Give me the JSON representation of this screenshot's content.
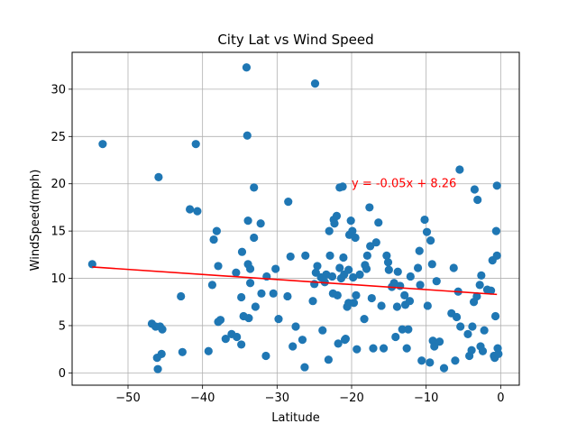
{
  "chart_data": {
    "type": "scatter",
    "title": "City Lat vs Wind Speed",
    "xlabel": "Latitude",
    "ylabel": "WindSpeed(mph)",
    "xlim": [
      -57.5,
      2.5
    ],
    "ylim": [
      -1.3,
      33.9
    ],
    "xticks": [
      -50,
      -40,
      -30,
      -20,
      -10,
      0
    ],
    "xtick_labels": [
      "−50",
      "−40",
      "−30",
      "−20",
      "−10",
      "0"
    ],
    "yticks": [
      0,
      5,
      10,
      15,
      20,
      25,
      30
    ],
    "ytick_labels": [
      "0",
      "5",
      "10",
      "15",
      "20",
      "25",
      "30"
    ],
    "grid": true,
    "point_color": "#1f77b4",
    "regression": {
      "x": [
        -54.8,
        -0.5
      ],
      "y": [
        11.2,
        8.3
      ],
      "color": "#ff0000",
      "equation": "y = -0.05x + 8.26",
      "equation_x": -20,
      "equation_y": 20
    },
    "points": [
      [
        -54.8,
        11.5
      ],
      [
        -53.4,
        24.2
      ],
      [
        -46.8,
        5.2
      ],
      [
        -46.3,
        4.9
      ],
      [
        -46.1,
        1.6
      ],
      [
        -46.0,
        0.4
      ],
      [
        -45.9,
        20.7
      ],
      [
        -45.7,
        4.9
      ],
      [
        -45.5,
        2.0
      ],
      [
        -45.4,
        4.6
      ],
      [
        -42.9,
        8.1
      ],
      [
        -42.7,
        2.2
      ],
      [
        -41.7,
        17.3
      ],
      [
        -40.9,
        24.2
      ],
      [
        -40.7,
        17.1
      ],
      [
        -39.2,
        2.3
      ],
      [
        -38.7,
        9.3
      ],
      [
        -38.5,
        14.1
      ],
      [
        -38.1,
        15.0
      ],
      [
        -37.9,
        11.3
      ],
      [
        -37.9,
        5.4
      ],
      [
        -37.6,
        5.6
      ],
      [
        -36.9,
        3.6
      ],
      [
        -36.1,
        4.1
      ],
      [
        -35.5,
        10.6
      ],
      [
        -35.4,
        3.8
      ],
      [
        -34.8,
        3.0
      ],
      [
        -34.8,
        8.0
      ],
      [
        -34.7,
        12.8
      ],
      [
        -34.5,
        6.0
      ],
      [
        -34.1,
        32.3
      ],
      [
        -34.0,
        25.1
      ],
      [
        -33.9,
        11.5
      ],
      [
        -33.9,
        16.1
      ],
      [
        -33.8,
        5.8
      ],
      [
        -33.6,
        11.0
      ],
      [
        -33.6,
        9.5
      ],
      [
        -33.1,
        14.3
      ],
      [
        -33.1,
        19.6
      ],
      [
        -32.9,
        7.0
      ],
      [
        -32.2,
        15.8
      ],
      [
        -32.1,
        8.4
      ],
      [
        -31.5,
        1.8
      ],
      [
        -31.4,
        10.2
      ],
      [
        -30.5,
        8.4
      ],
      [
        -30.2,
        11.0
      ],
      [
        -29.8,
        5.7
      ],
      [
        -28.6,
        8.1
      ],
      [
        -28.5,
        18.1
      ],
      [
        -28.2,
        12.3
      ],
      [
        -27.9,
        2.8
      ],
      [
        -27.5,
        4.9
      ],
      [
        -26.6,
        3.5
      ],
      [
        -26.3,
        0.6
      ],
      [
        -26.2,
        12.4
      ],
      [
        -25.2,
        7.6
      ],
      [
        -25.0,
        9.4
      ],
      [
        -24.9,
        30.6
      ],
      [
        -24.8,
        10.6
      ],
      [
        -24.6,
        11.3
      ],
      [
        -24.1,
        10.1
      ],
      [
        -23.9,
        4.5
      ],
      [
        -23.6,
        9.6
      ],
      [
        -23.4,
        10.4
      ],
      [
        -23.1,
        1.4
      ],
      [
        -23.0,
        15.0
      ],
      [
        -22.9,
        12.4
      ],
      [
        -22.6,
        10.2
      ],
      [
        -22.5,
        8.4
      ],
      [
        -22.4,
        16.2
      ],
      [
        -22.3,
        15.8
      ],
      [
        -22.0,
        16.6
      ],
      [
        -21.9,
        8.2
      ],
      [
        -21.8,
        3.1
      ],
      [
        -21.6,
        11.1
      ],
      [
        -21.6,
        19.6
      ],
      [
        -21.4,
        10.0
      ],
      [
        -21.2,
        19.7
      ],
      [
        -21.1,
        12.2
      ],
      [
        -21.0,
        10.4
      ],
      [
        -20.9,
        3.5
      ],
      [
        -20.8,
        3.6
      ],
      [
        -20.6,
        7.0
      ],
      [
        -20.4,
        10.9
      ],
      [
        -20.4,
        7.4
      ],
      [
        -20.3,
        14.6
      ],
      [
        -20.1,
        16.1
      ],
      [
        -19.9,
        15.0
      ],
      [
        -19.8,
        10.1
      ],
      [
        -19.7,
        7.4
      ],
      [
        -19.5,
        14.3
      ],
      [
        -19.4,
        8.2
      ],
      [
        -19.3,
        2.5
      ],
      [
        -18.9,
        10.4
      ],
      [
        -18.3,
        5.7
      ],
      [
        -18.2,
        11.4
      ],
      [
        -18.0,
        11.0
      ],
      [
        -17.9,
        12.4
      ],
      [
        -17.6,
        17.5
      ],
      [
        -17.5,
        13.4
      ],
      [
        -17.3,
        7.9
      ],
      [
        -17.1,
        2.6
      ],
      [
        -16.7,
        13.8
      ],
      [
        -16.4,
        15.9
      ],
      [
        -16.0,
        7.1
      ],
      [
        -15.7,
        2.6
      ],
      [
        -15.3,
        12.4
      ],
      [
        -15.1,
        11.7
      ],
      [
        -15.0,
        10.9
      ],
      [
        -14.6,
        9.1
      ],
      [
        -14.3,
        9.5
      ],
      [
        -14.1,
        3.8
      ],
      [
        -13.9,
        7.0
      ],
      [
        -13.8,
        10.7
      ],
      [
        -13.5,
        9.2
      ],
      [
        -13.2,
        4.6
      ],
      [
        -12.9,
        8.2
      ],
      [
        -12.8,
        7.2
      ],
      [
        -12.6,
        2.6
      ],
      [
        -12.4,
        4.6
      ],
      [
        -12.2,
        7.6
      ],
      [
        -12.1,
        10.2
      ],
      [
        -11.1,
        11.1
      ],
      [
        -10.9,
        12.9
      ],
      [
        -10.8,
        9.3
      ],
      [
        -10.6,
        1.3
      ],
      [
        -10.2,
        16.2
      ],
      [
        -9.9,
        14.9
      ],
      [
        -9.8,
        7.1
      ],
      [
        -9.5,
        1.1
      ],
      [
        -9.4,
        14.0
      ],
      [
        -9.2,
        11.5
      ],
      [
        -9.1,
        3.4
      ],
      [
        -8.9,
        2.8
      ],
      [
        -8.6,
        9.7
      ],
      [
        -8.2,
        3.3
      ],
      [
        -7.6,
        0.5
      ],
      [
        -6.6,
        6.3
      ],
      [
        -6.3,
        11.1
      ],
      [
        -6.1,
        1.3
      ],
      [
        -5.9,
        5.9
      ],
      [
        -5.7,
        8.6
      ],
      [
        -5.5,
        21.5
      ],
      [
        -5.4,
        4.9
      ],
      [
        -4.4,
        4.1
      ],
      [
        -4.2,
        1.8
      ],
      [
        -3.9,
        2.4
      ],
      [
        -3.8,
        4.9
      ],
      [
        -3.6,
        7.5
      ],
      [
        -3.5,
        19.4
      ],
      [
        -3.2,
        8.1
      ],
      [
        -3.1,
        18.3
      ],
      [
        -2.8,
        9.3
      ],
      [
        -2.7,
        2.8
      ],
      [
        -2.6,
        10.3
      ],
      [
        -2.4,
        2.3
      ],
      [
        -2.2,
        4.5
      ],
      [
        -1.8,
        8.8
      ],
      [
        -1.3,
        8.7
      ],
      [
        -1.1,
        11.9
      ],
      [
        -0.9,
        1.8
      ],
      [
        -0.8,
        1.6
      ],
      [
        -0.7,
        6.0
      ],
      [
        -0.6,
        15.0
      ],
      [
        -0.5,
        12.4
      ],
      [
        -0.5,
        19.8
      ],
      [
        -0.4,
        2.6
      ],
      [
        -0.3,
        2.0
      ]
    ]
  }
}
